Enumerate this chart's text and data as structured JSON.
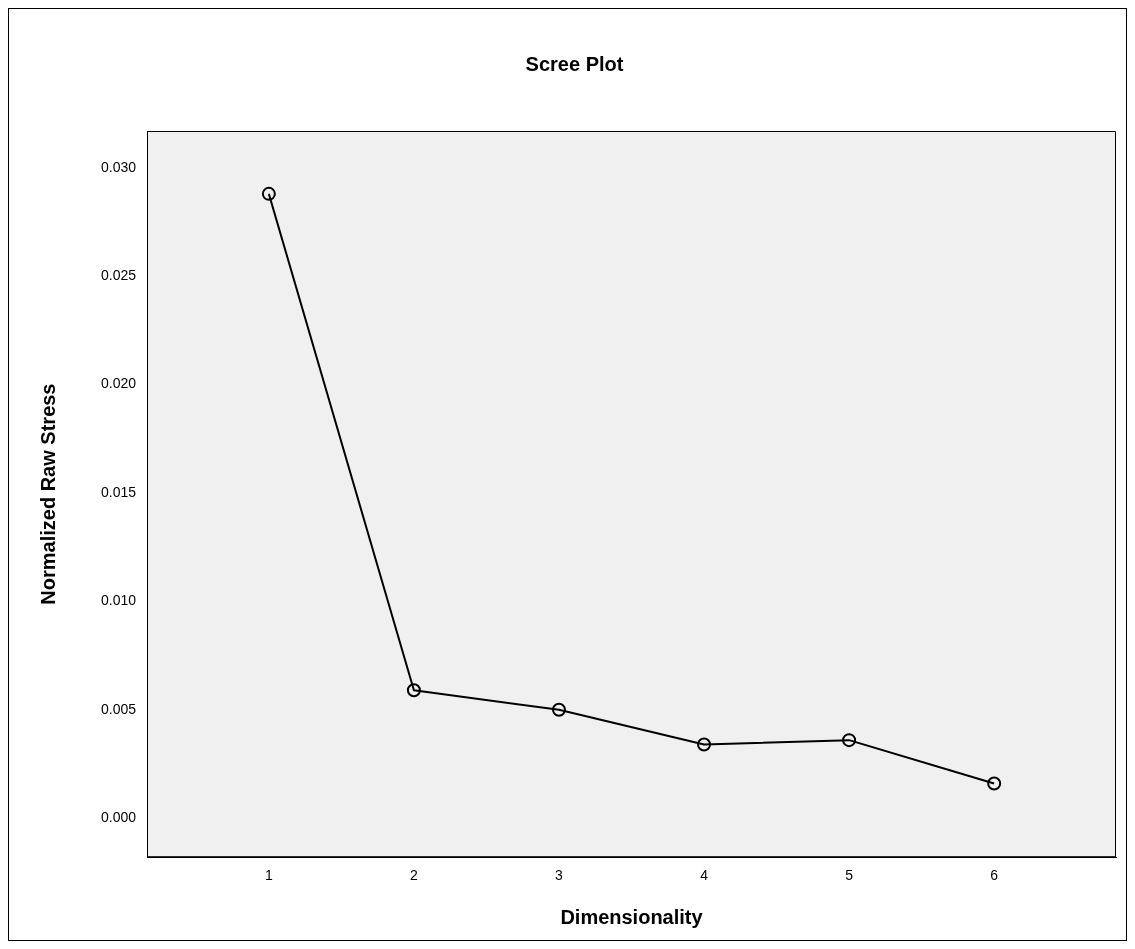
{
  "chart_data": {
    "type": "line",
    "title": "Scree Plot",
    "xlabel": "Dimensionality",
    "ylabel": "Normalized Raw Stress",
    "x": [
      1,
      2,
      3,
      4,
      5,
      6
    ],
    "series": [
      {
        "color": "#000000",
        "values": [
          0.0288,
          0.0059,
          0.005,
          0.0034,
          0.0036,
          0.0016
        ]
      }
    ],
    "xlim": [
      0.16,
      6.84
    ],
    "xticks": [
      1,
      2,
      3,
      4,
      5,
      6
    ],
    "ylim": [
      -0.0018,
      0.0317
    ],
    "yticks": [
      {
        "value": 0,
        "label": "0.000"
      },
      {
        "value": 0.005,
        "label": "0.005"
      },
      {
        "value": 0.01,
        "label": "0.010"
      },
      {
        "value": 0.015,
        "label": "0.015"
      },
      {
        "value": 0.02,
        "label": "0.020"
      },
      {
        "value": 0.025,
        "label": "0.025"
      },
      {
        "value": 0.03,
        "label": "0.030"
      }
    ],
    "grid": false,
    "legend": false,
    "marker": "circle",
    "line_style": "solid"
  }
}
